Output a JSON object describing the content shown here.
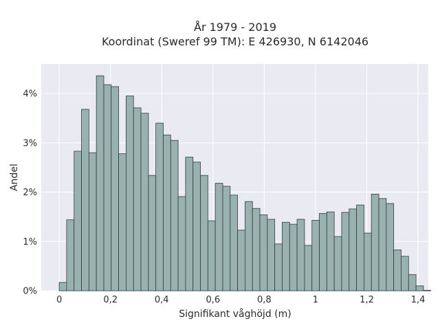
{
  "chart_data": {
    "type": "bar",
    "title": "År 1979 - 2019",
    "subtitle": "Koordinat (Sweref 99 TM): E 426930, N 6142046",
    "xlabel": "Signifikant våghöjd (m)",
    "ylabel": "Andel",
    "xlim": [
      -0.07,
      1.44
    ],
    "ylim": [
      0,
      4.6
    ],
    "x_ticks": [
      0,
      0.2,
      0.4,
      0.6,
      0.8,
      1,
      1.2,
      1.4
    ],
    "x_tick_labels": [
      "0",
      "0,2",
      "0,4",
      "0,6",
      "0,8",
      "1",
      "1,2",
      "1,4"
    ],
    "y_ticks": [
      0,
      1,
      2,
      3,
      4
    ],
    "y_tick_labels": [
      "0%",
      "1%",
      "2%",
      "3%",
      "4%"
    ],
    "bin_start": 0,
    "bin_width": 0.029,
    "values": [
      0.17,
      1.44,
      2.83,
      3.68,
      2.8,
      4.36,
      4.18,
      4.14,
      2.78,
      3.95,
      3.71,
      3.6,
      2.34,
      3.4,
      3.16,
      3.05,
      1.91,
      2.71,
      2.61,
      2.34,
      1.42,
      2.18,
      2.12,
      1.94,
      1.23,
      1.81,
      1.67,
      1.54,
      1.45,
      0.95,
      1.39,
      1.35,
      1.45,
      0.92,
      1.43,
      1.57,
      1.6,
      1.1,
      1.59,
      1.66,
      1.74,
      1.17,
      1.96,
      1.87,
      1.77,
      0.83,
      0.7,
      0.33,
      0.1,
      0.01
    ],
    "grid": true,
    "colors": {
      "bar_fill": "#99b2b0",
      "bar_edge": "#2f3b3b",
      "plot_background": "#eaeaf2",
      "grid": "#ffffff"
    }
  }
}
